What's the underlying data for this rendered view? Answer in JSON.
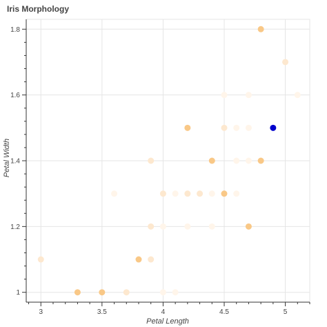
{
  "chart_data": {
    "type": "scatter",
    "title": "Iris Morphology",
    "xlabel": "Petal Length",
    "ylabel": "Petal Width",
    "xlim": [
      2.88,
      5.2
    ],
    "ylim": [
      0.97,
      1.83
    ],
    "xticks": [
      "3",
      "3.5",
      "4",
      "4.5",
      "5"
    ],
    "xtick_values": [
      3,
      3.5,
      4,
      4.5,
      5
    ],
    "yticks": [
      "1",
      "1.2",
      "1.4",
      "1.6",
      "1.8"
    ],
    "ytick_values": [
      1,
      1.2,
      1.4,
      1.6,
      1.8
    ],
    "grid": true,
    "legend": "none",
    "highlight_color": "#0000cc",
    "colormap": [
      "#fff5ea",
      "#fde8cf",
      "#f9c887",
      "#f2b366"
    ],
    "points": [
      {
        "x": 4.8,
        "y": 1.8,
        "level": 2
      },
      {
        "x": 5.0,
        "y": 1.7,
        "level": 1
      },
      {
        "x": 4.5,
        "y": 1.6,
        "level": 0
      },
      {
        "x": 4.7,
        "y": 1.6,
        "level": 0
      },
      {
        "x": 5.1,
        "y": 1.6,
        "level": 0
      },
      {
        "x": 4.2,
        "y": 1.5,
        "level": 2
      },
      {
        "x": 4.5,
        "y": 1.5,
        "level": 1
      },
      {
        "x": 4.6,
        "y": 1.5,
        "level": 0
      },
      {
        "x": 4.7,
        "y": 1.5,
        "level": 0
      },
      {
        "x": 4.9,
        "y": 1.5,
        "level": 4
      },
      {
        "x": 3.9,
        "y": 1.4,
        "level": 1
      },
      {
        "x": 4.4,
        "y": 1.4,
        "level": 2
      },
      {
        "x": 4.6,
        "y": 1.4,
        "level": 0
      },
      {
        "x": 4.7,
        "y": 1.4,
        "level": 0
      },
      {
        "x": 4.8,
        "y": 1.4,
        "level": 2
      },
      {
        "x": 3.6,
        "y": 1.3,
        "level": 0
      },
      {
        "x": 4.0,
        "y": 1.3,
        "level": 1
      },
      {
        "x": 4.1,
        "y": 1.3,
        "level": 0
      },
      {
        "x": 4.2,
        "y": 1.3,
        "level": 1
      },
      {
        "x": 4.3,
        "y": 1.3,
        "level": 1
      },
      {
        "x": 4.4,
        "y": 1.3,
        "level": 0
      },
      {
        "x": 4.5,
        "y": 1.3,
        "level": 2
      },
      {
        "x": 4.6,
        "y": 1.3,
        "level": 0
      },
      {
        "x": 3.9,
        "y": 1.2,
        "level": 1
      },
      {
        "x": 4.0,
        "y": 1.2,
        "level": 0
      },
      {
        "x": 4.2,
        "y": 1.2,
        "level": 0
      },
      {
        "x": 4.4,
        "y": 1.2,
        "level": 0
      },
      {
        "x": 4.7,
        "y": 1.2,
        "level": 2
      },
      {
        "x": 3.0,
        "y": 1.1,
        "level": 1
      },
      {
        "x": 3.8,
        "y": 1.1,
        "level": 2
      },
      {
        "x": 3.9,
        "y": 1.1,
        "level": 1
      },
      {
        "x": 3.3,
        "y": 1.0,
        "level": 2
      },
      {
        "x": 3.5,
        "y": 1.0,
        "level": 2
      },
      {
        "x": 3.7,
        "y": 1.0,
        "level": 1
      },
      {
        "x": 4.0,
        "y": 1.0,
        "level": 0
      },
      {
        "x": 4.1,
        "y": 1.0,
        "level": 0
      }
    ]
  }
}
